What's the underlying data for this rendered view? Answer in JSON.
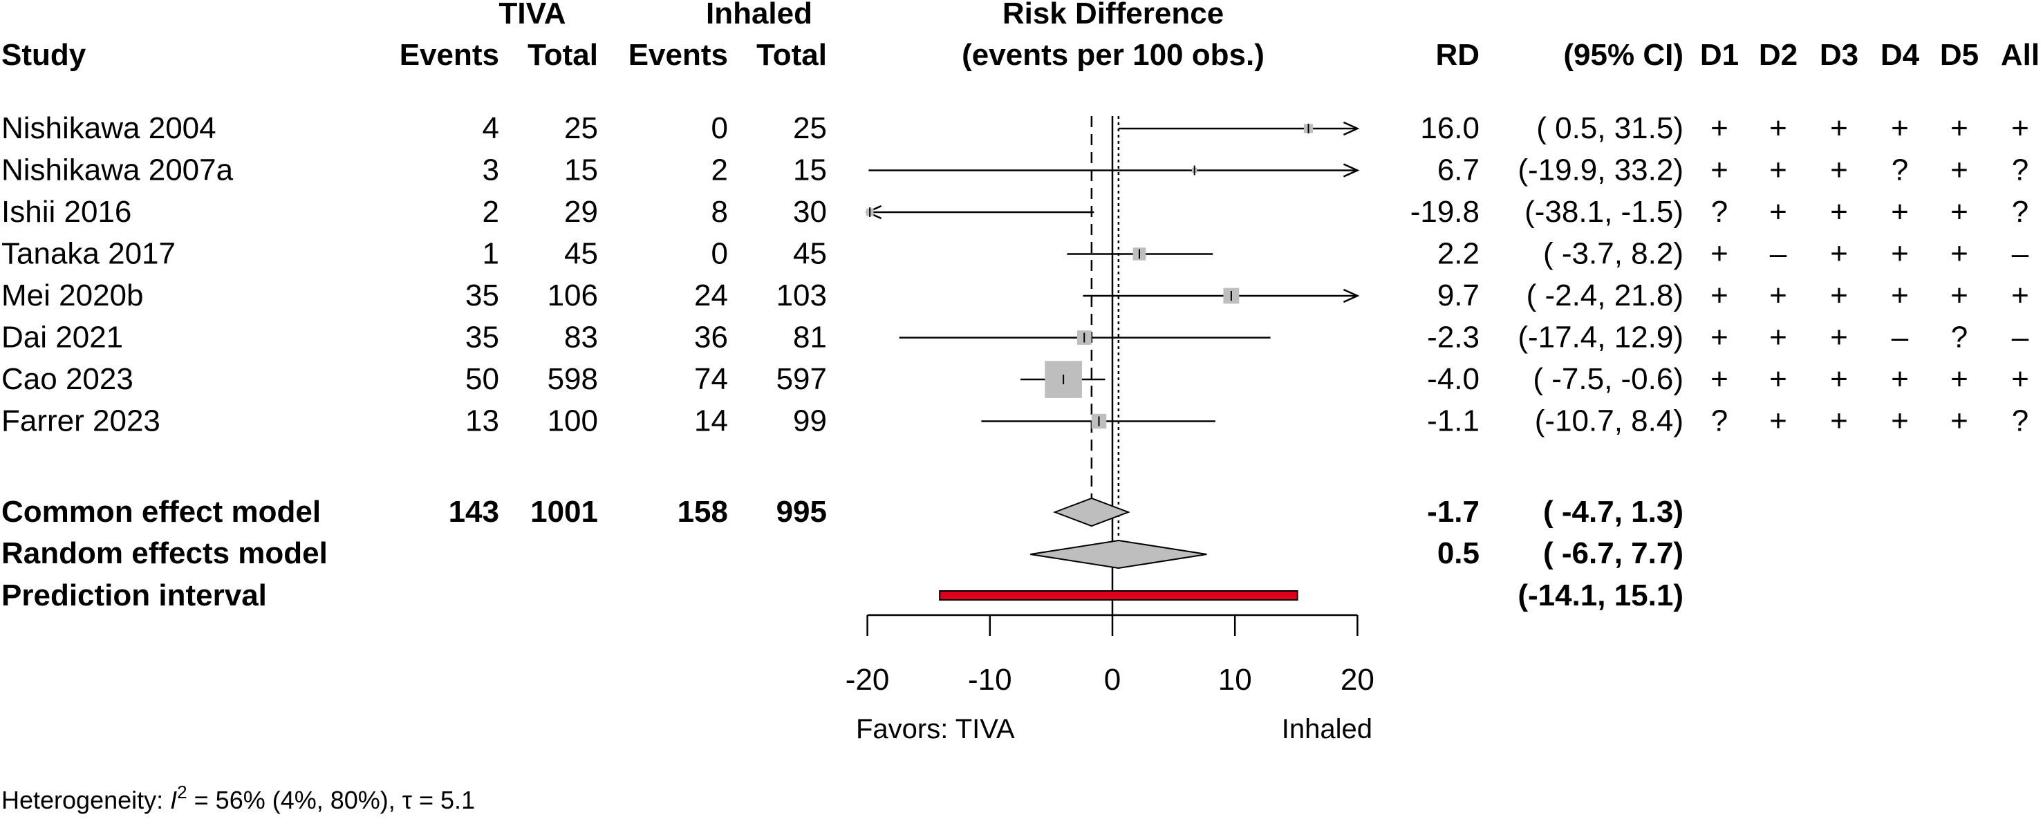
{
  "headers": {
    "study": "Study",
    "tiva": "TIVA",
    "inhaled": "Inhaled",
    "events": "Events",
    "total": "Total",
    "rd_title_1": "Risk Difference",
    "rd_title_2": "(events per 100 obs.)",
    "rd": "RD",
    "ci": "(95% CI)",
    "domains": [
      "D1",
      "D2",
      "D3",
      "D4",
      "D5",
      "All"
    ]
  },
  "studies": [
    {
      "name": "Nishikawa 2004",
      "tiva_events": "4",
      "tiva_total": "25",
      "inh_events": "0",
      "inh_total": "25",
      "rd": 16.0,
      "lower": 0.5,
      "upper": 31.5,
      "rd_text": "16.0",
      "ci_text": "(  0.5, 31.5)",
      "weight": 0.3,
      "rob": [
        "+",
        "+",
        "+",
        "+",
        "+",
        "+"
      ]
    },
    {
      "name": "Nishikawa 2007a",
      "tiva_events": "3",
      "tiva_total": "15",
      "inh_events": "2",
      "inh_total": "15",
      "rd": 6.7,
      "lower": -19.9,
      "upper": 33.2,
      "rd_text": "6.7",
      "ci_text": "(-19.9, 33.2)",
      "weight": 0.1,
      "rob": [
        "+",
        "+",
        "+",
        "?",
        "+",
        "?"
      ]
    },
    {
      "name": "Ishii 2016",
      "tiva_events": "2",
      "tiva_total": "29",
      "inh_events": "8",
      "inh_total": "30",
      "rd": -19.8,
      "lower": -38.1,
      "upper": -1.5,
      "rd_text": "-19.8",
      "ci_text": "(-38.1, -1.5)",
      "weight": 0.2,
      "rob": [
        "?",
        "+",
        "+",
        "+",
        "+",
        "?"
      ]
    },
    {
      "name": "Tanaka 2017",
      "tiva_events": "1",
      "tiva_total": "45",
      "inh_events": "0",
      "inh_total": "45",
      "rd": 2.2,
      "lower": -3.7,
      "upper": 8.2,
      "rd_text": "2.2",
      "ci_text": "( -3.7,  8.2)",
      "weight": 0.6,
      "rob": [
        "+",
        "–",
        "+",
        "+",
        "+",
        "–"
      ]
    },
    {
      "name": "Mei 2020b",
      "tiva_events": "35",
      "tiva_total": "106",
      "inh_events": "24",
      "inh_total": "103",
      "rd": 9.7,
      "lower": -2.4,
      "upper": 21.8,
      "rd_text": "9.7",
      "ci_text": "( -2.4, 21.8)",
      "weight": 0.9,
      "rob": [
        "+",
        "+",
        "+",
        "+",
        "+",
        "+"
      ]
    },
    {
      "name": "Dai 2021",
      "tiva_events": "35",
      "tiva_total": "83",
      "inh_events": "36",
      "inh_total": "81",
      "rd": -2.3,
      "lower": -17.4,
      "upper": 12.9,
      "rd_text": "-2.3",
      "ci_text": "(-17.4, 12.9)",
      "weight": 0.75,
      "rob": [
        "+",
        "+",
        "+",
        "–",
        "?",
        "–"
      ]
    },
    {
      "name": "Cao 2023",
      "tiva_events": "50",
      "tiva_total": "598",
      "inh_events": "74",
      "inh_total": "597",
      "rd": -4.0,
      "lower": -7.5,
      "upper": -0.6,
      "rd_text": "-4.0",
      "ci_text": "( -7.5, -0.6)",
      "weight": 5.0,
      "rob": [
        "+",
        "+",
        "+",
        "+",
        "+",
        "+"
      ]
    },
    {
      "name": "Farrer 2023",
      "tiva_events": "13",
      "tiva_total": "100",
      "inh_events": "14",
      "inh_total": "99",
      "rd": -1.1,
      "lower": -10.7,
      "upper": 8.4,
      "rd_text": "-1.1",
      "ci_text": "(-10.7,  8.4)",
      "weight": 0.8,
      "rob": [
        "?",
        "+",
        "+",
        "+",
        "+",
        "?"
      ]
    }
  ],
  "common_effect": {
    "label": "Common effect model",
    "tiva_events": "143",
    "tiva_total": "1001",
    "inh_events": "158",
    "inh_total": "995",
    "rd": -1.7,
    "lower": -4.7,
    "upper": 1.3,
    "rd_text": "-1.7",
    "ci_text": "( -4.7,  1.3)"
  },
  "random_effects": {
    "label": "Random effects model",
    "rd": 0.5,
    "lower": -6.7,
    "upper": 7.7,
    "rd_text": "0.5",
    "ci_text": "( -6.7,  7.7)"
  },
  "prediction": {
    "label": "Prediction interval",
    "lower": -14.1,
    "upper": 15.1,
    "ci_text": "(-14.1, 15.1)"
  },
  "axis": {
    "ticks": [
      -20,
      -10,
      0,
      10,
      20
    ],
    "xlim": [
      -20,
      20
    ]
  },
  "favors": {
    "left": "Favors: TIVA",
    "right": "Inhaled"
  },
  "heterogeneity": {
    "prefix": "Heterogeneity: ",
    "i2_symbol": "I",
    "i2_sup": "2",
    "i2_text": " = 56% (4%, 80%), τ = 5.1"
  },
  "colors": {
    "square": "#bebebe",
    "diamond": "#bebebe",
    "prediction": "#e0001b"
  },
  "chart_data": {
    "type": "scatter",
    "title": "",
    "xlabel": "Risk Difference (events per 100 obs.)",
    "ylabel": "",
    "xlim": [
      -20,
      20
    ],
    "categories": [
      "Nishikawa 2004",
      "Nishikawa 2007a",
      "Ishii 2016",
      "Tanaka 2017",
      "Mei 2020b",
      "Dai 2021",
      "Cao 2023",
      "Farrer 2023"
    ],
    "series": [
      {
        "values": [
          16.0,
          6.7,
          -19.8,
          2.2,
          9.7,
          -2.3,
          -4.0,
          -1.1
        ]
      }
    ],
    "ci_lower": [
      0.5,
      -19.9,
      -38.1,
      -3.7,
      -2.4,
      -17.4,
      -7.5,
      -10.7
    ],
    "ci_upper": [
      31.5,
      33.2,
      -1.5,
      8.2,
      21.8,
      12.9,
      -0.6,
      8.4
    ],
    "common_effect": {
      "rd": -1.7,
      "lower": -4.7,
      "upper": 1.3
    },
    "random_effects": {
      "rd": 0.5,
      "lower": -6.7,
      "upper": 7.7
    },
    "prediction_interval": [
      -14.1,
      15.1
    ]
  }
}
